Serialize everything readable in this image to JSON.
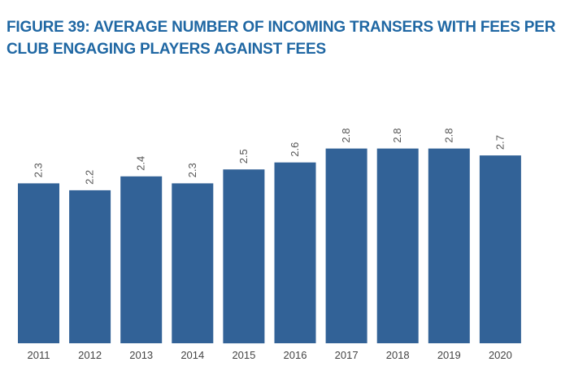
{
  "chart_data": {
    "type": "bar",
    "title": "FIGURE 39: AVERAGE NUMBER OF INCOMING TRANSERS WITH FEES PER CLUB ENGAGING PLAYERS AGAINST FEES",
    "categories": [
      "2011",
      "2012",
      "2013",
      "2014",
      "2015",
      "2016",
      "2017",
      "2018",
      "2019",
      "2020"
    ],
    "values": [
      2.3,
      2.2,
      2.4,
      2.3,
      2.5,
      2.6,
      2.8,
      2.8,
      2.8,
      2.7
    ],
    "value_labels": [
      "2.3",
      "2.2",
      "2.4",
      "2.3",
      "2.5",
      "2.6",
      "2.8",
      "2.8",
      "2.8",
      "2.7"
    ],
    "xlabel": "",
    "ylabel": "",
    "grid": false,
    "bar_color": "#326297"
  }
}
